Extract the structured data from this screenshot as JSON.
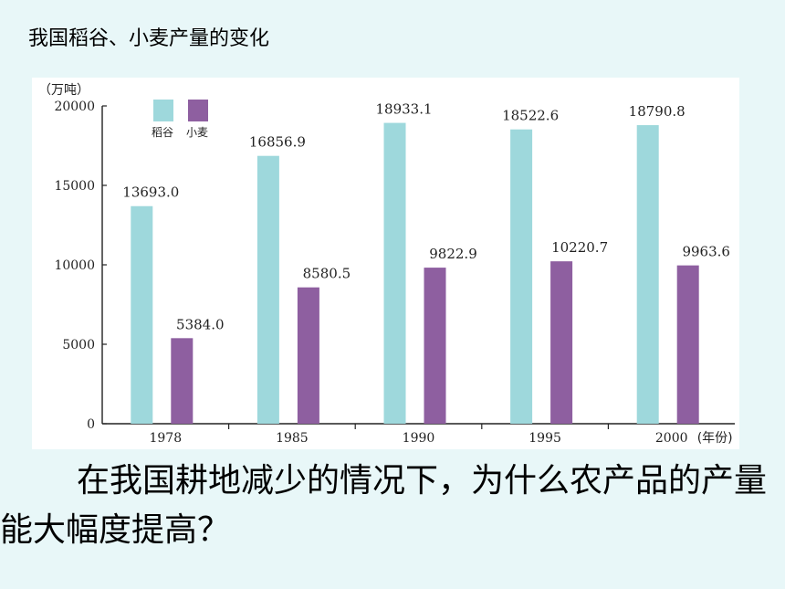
{
  "slide": {
    "title": "我国稻谷、小麦产量的变化",
    "question": "在我国耕地减少的情况下，为什么农产品的产量能大幅度提高？"
  },
  "chart_data": {
    "type": "bar",
    "title": "",
    "ylabel": "（万吨）",
    "xlabel": "(年份)",
    "ylim": [
      0,
      20000
    ],
    "yticks": [
      0,
      5000,
      10000,
      15000,
      20000
    ],
    "categories": [
      "1978",
      "1985",
      "1990",
      "1995",
      "2000"
    ],
    "series": [
      {
        "name": "稻谷",
        "color": "#9ed8dc",
        "values": [
          13693.0,
          16856.9,
          18933.1,
          18522.6,
          18790.8
        ],
        "labels": [
          "13693.0",
          "16856.9",
          "18933.1",
          "18522.6",
          "18790.8"
        ]
      },
      {
        "name": "小麦",
        "color": "#8e5fa0",
        "values": [
          5384.0,
          8580.5,
          9822.9,
          10220.7,
          9963.6
        ],
        "labels": [
          "5384.0",
          "8580.5",
          "9822.9",
          "10220.7",
          "9963.6"
        ]
      }
    ],
    "legend_position": "top-left",
    "grid": false
  }
}
